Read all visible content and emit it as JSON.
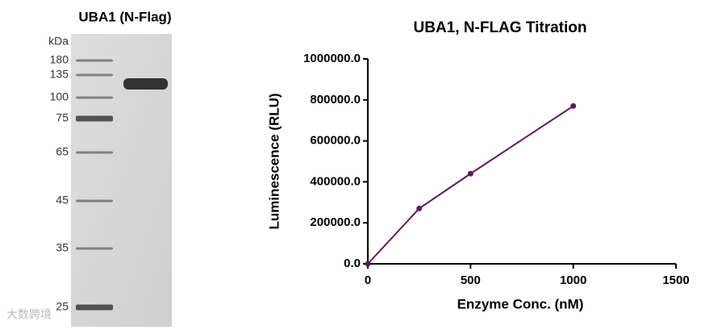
{
  "gel": {
    "title": "UBA1 (N-Flag)",
    "unit": "kDa",
    "markers": [
      "180",
      "135",
      "100",
      "75",
      "65",
      "45",
      "35",
      "25"
    ]
  },
  "watermark": "大数跨境",
  "chart_data": {
    "type": "line",
    "title": "UBA1, N-FLAG Titration",
    "x_label": "Enzyme Conc. (nM)",
    "y_label": "Luminescence (RLU)",
    "x": [
      0,
      250,
      500,
      1000
    ],
    "series": [
      {
        "name": "UBA1, N-FLAG",
        "color": "#5e1a5a",
        "values": [
          0,
          270000,
          440000,
          770000
        ]
      }
    ],
    "xlim": [
      0,
      1500
    ],
    "xticks": [
      0,
      500,
      1000,
      1500
    ],
    "ylim": [
      0,
      1000000
    ],
    "yticks": [
      {
        "value": 0,
        "label": "0.0"
      },
      {
        "value": 200000,
        "label": "200000.0"
      },
      {
        "value": 400000,
        "label": "400000.0"
      },
      {
        "value": 600000,
        "label": "600000.0"
      },
      {
        "value": 800000,
        "label": "800000.0"
      },
      {
        "value": 1000000,
        "label": "1000000.0"
      }
    ]
  }
}
